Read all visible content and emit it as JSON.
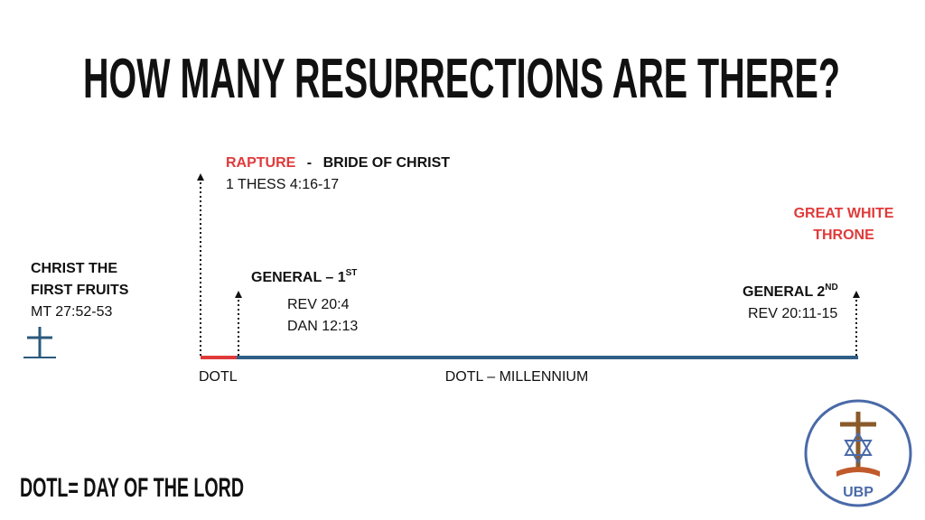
{
  "title": "HOW MANY RESURRECTIONS ARE THERE?",
  "christ": {
    "lines": [
      "CHRIST THE",
      "FIRST FRUITS"
    ],
    "ref": "MT 27:52-53"
  },
  "rapture": {
    "name": "RAPTURE",
    "separator": "-",
    "group": "BRIDE OF CHRIST",
    "ref": "1 THESS 4:16-17"
  },
  "general_first": {
    "name": "GENERAL – 1",
    "sup": "ST",
    "refs": [
      "REV 20:4",
      "DAN 12:13"
    ]
  },
  "great_white_throne": {
    "lines": [
      "GREAT WHITE",
      "THRONE"
    ]
  },
  "general_second": {
    "name": "GENERAL 2",
    "sup": "ND",
    "ref": "REV 20:11-15"
  },
  "timeline": {
    "start": "DOTL",
    "span": "DOTL – MILLENNIUM"
  },
  "footnote": "DOTL= DAY OF THE LORD",
  "logo": {
    "text": "UBP"
  }
}
